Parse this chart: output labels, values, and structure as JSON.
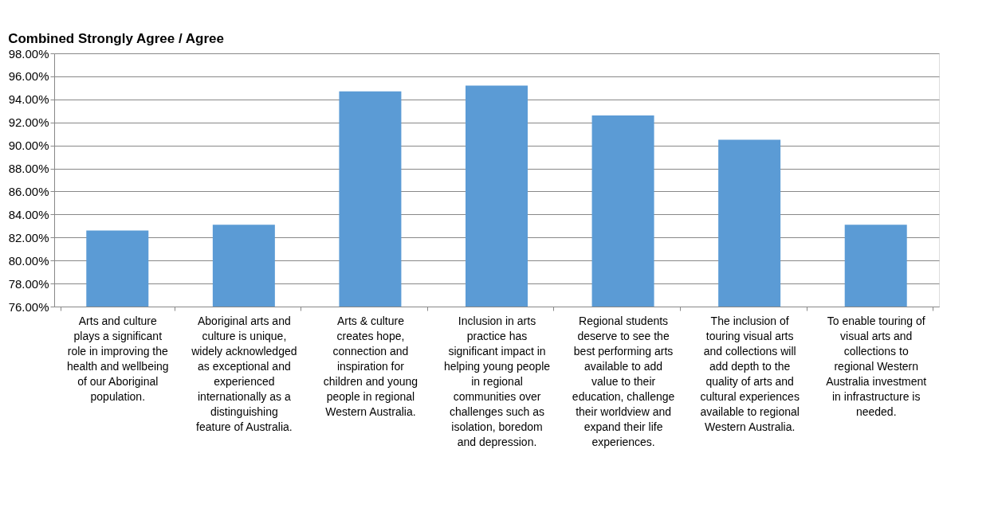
{
  "chart_data": {
    "type": "bar",
    "title": "Combined Strongly Agree / Agree",
    "categories": [
      "Arts and culture plays a significant role in improving the health and wellbeing of our Aboriginal population.",
      "Aboriginal arts and culture is unique, widely acknowledged as exceptional and experienced internationally as a distinguishing feature of Australia.",
      "Arts & culture creates hope, connection and inspiration for children and young people in regional Western Australia.",
      "Inclusion in arts practice has significant impact in helping young people in regional communities over challenges such as isolation, boredom and depression.",
      "Regional students deserve to see the best performing arts available to add value to their education, challenge their worldview and expand their life experiences.",
      "The inclusion of touring visual arts and collections will add depth to the quality of arts and cultural experiences available to regional Western Australia.",
      "To enable touring of visual arts and collections to regional Western Australia investment in infrastructure is needed."
    ],
    "values": [
      82.6,
      83.1,
      94.7,
      95.2,
      92.6,
      90.5,
      83.1
    ],
    "color": "#5b9bd5",
    "ylim": [
      76,
      98
    ],
    "yticks": [
      {
        "value": 76,
        "label": "76.00%"
      },
      {
        "value": 78,
        "label": "78.00%"
      },
      {
        "value": 80,
        "label": "80.00%"
      },
      {
        "value": 82,
        "label": "82.00%"
      },
      {
        "value": 84,
        "label": "84.00%"
      },
      {
        "value": 86,
        "label": "86.00%"
      },
      {
        "value": 88,
        "label": "88.00%"
      },
      {
        "value": 90,
        "label": "90.00%"
      },
      {
        "value": 92,
        "label": "92.00%"
      },
      {
        "value": 94,
        "label": "94.00%"
      },
      {
        "value": 96,
        "label": "96.00%"
      },
      {
        "value": 98,
        "label": "98.00%"
      }
    ],
    "grid": "y"
  }
}
